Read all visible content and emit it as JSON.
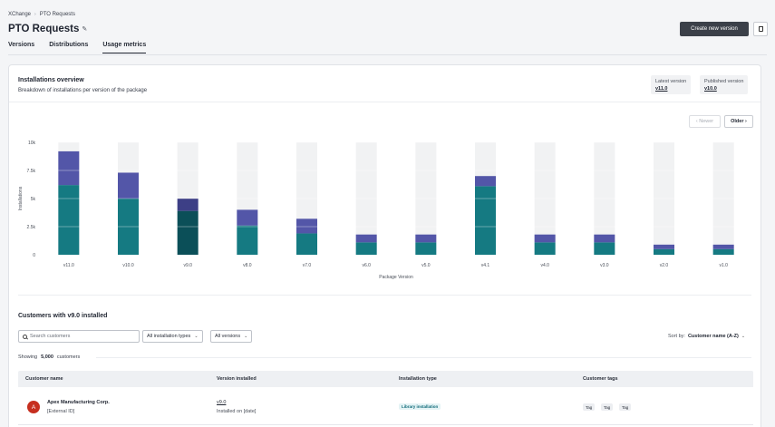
{
  "breadcrumb": {
    "root": "XChange",
    "current": "PTO Requests"
  },
  "page": {
    "title": "PTO Requests"
  },
  "tabs": [
    {
      "label": "Versions"
    },
    {
      "label": "Distributions"
    },
    {
      "label": "Usage metrics",
      "active": true
    }
  ],
  "header_actions": {
    "create_label": "Create new version"
  },
  "overview": {
    "title": "Installations overview",
    "subtitle": "Breakdown of installations per version of the package",
    "latest_label": "Latest version",
    "latest_value": "v11.0",
    "published_label": "Published version",
    "published_value": "v10.0",
    "newer_label": "‹ Newer",
    "older_label": "Older ›"
  },
  "chart_data": {
    "type": "bar",
    "stacked": true,
    "categories": [
      "v11.0",
      "v10.0",
      "v9.0",
      "v8.0",
      "v7.0",
      "v6.0",
      "v5.0",
      "v4.1",
      "v4.0",
      "v3.0",
      "v2.0",
      "v1.0"
    ],
    "series": [
      {
        "values": [
          6200,
          5000,
          3900,
          2600,
          1900,
          1100,
          1100,
          6100,
          1100,
          1100,
          500,
          500
        ]
      },
      {
        "values": [
          3000,
          2300,
          1100,
          1400,
          1300,
          700,
          700,
          900,
          700,
          700,
          400,
          400
        ]
      }
    ],
    "ylim": [
      0,
      10000
    ],
    "yticks": [
      {
        "value": 0,
        "label": "0"
      },
      {
        "value": 2500,
        "label": "2.5k"
      },
      {
        "value": 5000,
        "label": "5k"
      },
      {
        "value": 7500,
        "label": "7.5k"
      },
      {
        "value": 10000,
        "label": "10k"
      }
    ],
    "xlabel": "Package Version",
    "ylabel": "Installations",
    "highlight_category": "v9.0",
    "colors": {
      "base": "#157a82",
      "top": "#5356a8",
      "base_highlight": "#0b4f58",
      "top_highlight": "#3d3f86",
      "track": "#f1f2f3"
    }
  },
  "customers": {
    "title": "Customers with v9.0 installed",
    "search_placeholder": "Search customers",
    "filter_type": "All installation types",
    "filter_version": "All versions",
    "sort_label": "Sort by:",
    "sort_value": "Customer name (A-Z)",
    "showing_prefix": "Showing",
    "showing_count": "5,000",
    "showing_suffix": "customers",
    "columns": [
      "Customer name",
      "Version installed",
      "Installation type",
      "Customer tags"
    ],
    "rows": [
      {
        "initial": "A",
        "name": "Apex Manufacturing Corp.",
        "external_id": "[External ID]",
        "version": "v9.0",
        "installed_on": "Installed on [date]",
        "installation_type": "Library installation",
        "tags": [
          "Tag",
          "Tag",
          "Tag"
        ]
      }
    ]
  }
}
